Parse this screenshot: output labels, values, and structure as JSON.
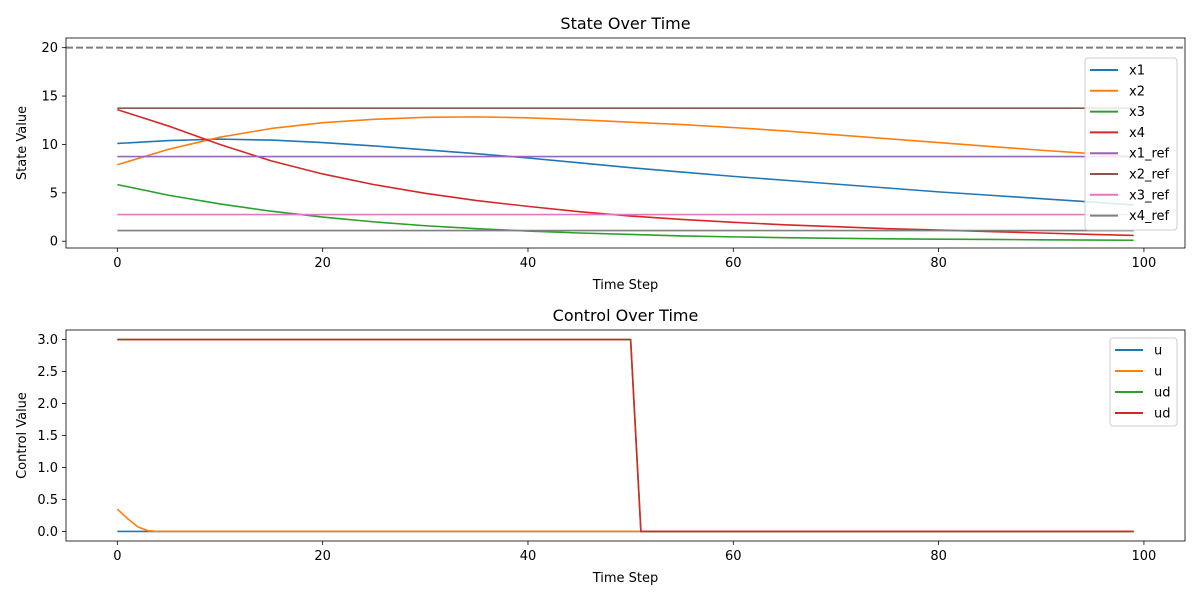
{
  "chart_data": [
    {
      "type": "line",
      "title": "State Over Time",
      "xlabel": "Time Step",
      "ylabel": "State Value",
      "xlim": [
        -5,
        104
      ],
      "ylim": [
        -0.7,
        21
      ],
      "xticks": [
        0,
        20,
        40,
        60,
        80,
        100
      ],
      "yticks": [
        0,
        5,
        10,
        15,
        20
      ],
      "grid": false,
      "legend_position": "upper-right",
      "hlines": [
        {
          "y": 20,
          "color": "#7f7f7f",
          "style": "dashed"
        }
      ],
      "series": [
        {
          "name": "x1",
          "color": "#1f77b4",
          "points": [
            [
              0,
              10.1
            ],
            [
              5,
              10.4
            ],
            [
              10,
              10.55
            ],
            [
              15,
              10.45
            ],
            [
              20,
              10.2
            ],
            [
              25,
              9.85
            ],
            [
              30,
              9.45
            ],
            [
              35,
              9.05
            ],
            [
              40,
              8.6
            ],
            [
              45,
              8.1
            ],
            [
              50,
              7.6
            ],
            [
              55,
              7.15
            ],
            [
              60,
              6.7
            ],
            [
              65,
              6.3
            ],
            [
              70,
              5.9
            ],
            [
              75,
              5.5
            ],
            [
              80,
              5.1
            ],
            [
              85,
              4.75
            ],
            [
              90,
              4.4
            ],
            [
              95,
              4.05
            ],
            [
              99,
              3.75
            ]
          ]
        },
        {
          "name": "x2",
          "color": "#ff7f0e",
          "points": [
            [
              0,
              7.9
            ],
            [
              5,
              9.5
            ],
            [
              10,
              10.75
            ],
            [
              15,
              11.65
            ],
            [
              20,
              12.25
            ],
            [
              25,
              12.6
            ],
            [
              30,
              12.8
            ],
            [
              35,
              12.85
            ],
            [
              40,
              12.75
            ],
            [
              45,
              12.55
            ],
            [
              50,
              12.3
            ],
            [
              55,
              12.05
            ],
            [
              60,
              11.75
            ],
            [
              65,
              11.4
            ],
            [
              70,
              11.0
            ],
            [
              75,
              10.6
            ],
            [
              80,
              10.2
            ],
            [
              85,
              9.8
            ],
            [
              90,
              9.4
            ],
            [
              95,
              9.05
            ],
            [
              99,
              8.75
            ]
          ]
        },
        {
          "name": "x3",
          "color": "#2ca02c",
          "points": [
            [
              0,
              5.85
            ],
            [
              5,
              4.75
            ],
            [
              10,
              3.85
            ],
            [
              15,
              3.1
            ],
            [
              20,
              2.5
            ],
            [
              25,
              2.0
            ],
            [
              30,
              1.6
            ],
            [
              35,
              1.3
            ],
            [
              40,
              1.05
            ],
            [
              45,
              0.85
            ],
            [
              50,
              0.7
            ],
            [
              55,
              0.55
            ],
            [
              60,
              0.45
            ],
            [
              65,
              0.37
            ],
            [
              70,
              0.3
            ],
            [
              75,
              0.25
            ],
            [
              80,
              0.21
            ],
            [
              85,
              0.18
            ],
            [
              90,
              0.15
            ],
            [
              95,
              0.12
            ],
            [
              99,
              0.1
            ]
          ]
        },
        {
          "name": "x4",
          "color": "#d62728",
          "points": [
            [
              0,
              13.6
            ],
            [
              5,
              11.9
            ],
            [
              10,
              10.0
            ],
            [
              15,
              8.3
            ],
            [
              20,
              6.95
            ],
            [
              25,
              5.85
            ],
            [
              30,
              4.95
            ],
            [
              35,
              4.2
            ],
            [
              40,
              3.6
            ],
            [
              45,
              3.05
            ],
            [
              50,
              2.6
            ],
            [
              55,
              2.25
            ],
            [
              60,
              1.95
            ],
            [
              65,
              1.7
            ],
            [
              70,
              1.5
            ],
            [
              75,
              1.3
            ],
            [
              80,
              1.15
            ],
            [
              85,
              1.0
            ],
            [
              90,
              0.85
            ],
            [
              95,
              0.7
            ],
            [
              99,
              0.6
            ]
          ]
        },
        {
          "name": "x1_ref",
          "color": "#9467bd",
          "points": [
            [
              0,
              8.75
            ],
            [
              99,
              8.75
            ]
          ]
        },
        {
          "name": "x2_ref",
          "color": "#8c564b",
          "points": [
            [
              0,
              13.75
            ],
            [
              99,
              13.75
            ]
          ]
        },
        {
          "name": "x3_ref",
          "color": "#e377c2",
          "points": [
            [
              0,
              2.75
            ],
            [
              99,
              2.75
            ]
          ]
        },
        {
          "name": "x4_ref",
          "color": "#7f7f7f",
          "points": [
            [
              0,
              1.1
            ],
            [
              99,
              1.1
            ]
          ]
        }
      ]
    },
    {
      "type": "line",
      "title": "Control Over Time",
      "xlabel": "Time Step",
      "ylabel": "Control Value",
      "xlim": [
        -5,
        104
      ],
      "ylim": [
        -0.15,
        3.15
      ],
      "xticks": [
        0,
        20,
        40,
        60,
        80,
        100
      ],
      "yticks": [
        0.0,
        0.5,
        1.0,
        1.5,
        2.0,
        2.5,
        3.0
      ],
      "ytick_labels": [
        "0.0",
        "0.5",
        "1.0",
        "1.5",
        "2.0",
        "2.5",
        "3.0"
      ],
      "grid": false,
      "legend_position": "upper-right",
      "series": [
        {
          "name": "u",
          "color": "#1f77b4",
          "points": [
            [
              0,
              0
            ],
            [
              99,
              0
            ]
          ]
        },
        {
          "name": "u",
          "color": "#ff7f0e",
          "points": [
            [
              0,
              0.35
            ],
            [
              1,
              0.2
            ],
            [
              2,
              0.07
            ],
            [
              3,
              0.01
            ],
            [
              4,
              0
            ],
            [
              99,
              0
            ]
          ]
        },
        {
          "name": "ud",
          "color": "#2ca02c",
          "points": [
            [
              0,
              3.0
            ],
            [
              50,
              3.0
            ],
            [
              51,
              0
            ],
            [
              99,
              0
            ]
          ]
        },
        {
          "name": "ud",
          "color": "#d62728",
          "points": [
            [
              0,
              3.0
            ],
            [
              50,
              3.0
            ],
            [
              51,
              0
            ],
            [
              99,
              0
            ]
          ]
        }
      ]
    }
  ]
}
